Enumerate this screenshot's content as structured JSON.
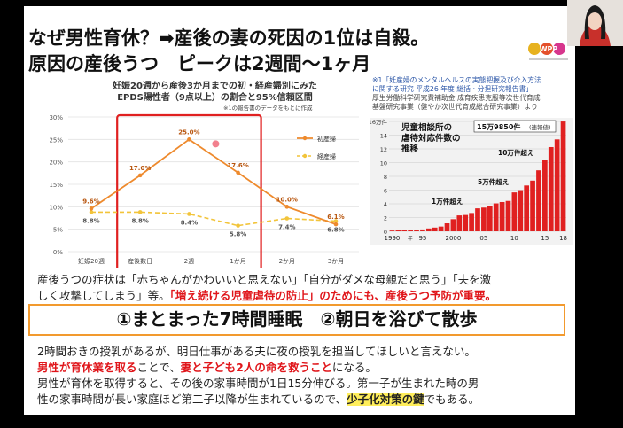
{
  "slide": {
    "title_line1": "なぜ男性育休？➡産後の妻の死因の1位は自殺。",
    "title_line2": "原因の産後うつ　ピークは2週間〜1ヶ月",
    "logo_text": "WPP",
    "chart_title_line1": "妊娠20週から産後3か月までの初・経産婦別にみた",
    "chart_title_line2": "EPDS陽性者（9点以上）の割合と95%信頼区間",
    "chart_note": "※1の報告書のデータをもとに作成",
    "ref_line1": "※1「妊産婦のメンタルヘルスの実態把握及び介入方法",
    "ref_line2": "に関する研究 平成26 年度 総括・分担研究報告書」",
    "ref_line3": "厚生労働科学研究費補助金 成育疾患克服等次世代育成",
    "ref_line4": "基盤研究事業（健やか次世代育成総合研究事業）より",
    "para1_line1": "産後うつの症状は「赤ちゃんがかわいいと思えない」「自分がダメな母親だと思う」「夫を激",
    "para1_line2a": "しく攻撃してしまう」等。",
    "para1_line2b": "「増え続ける児童虐待の防止」のためにも、産後うつ予防が重要。",
    "banner": "①まとまった7時間睡眠　②朝日を浴びて散歩",
    "para2_line1": "2時間おきの授乳があるが、明日仕事がある夫に夜の授乳を担当してほしいと言えない。",
    "para2_line2a": "男性が育休業を取る",
    "para2_line2b": "ことで、",
    "para2_line2c": "妻と子ども2人の命を救うこと",
    "para2_line2d": "になる。",
    "para3_line1": "男性が育休を取得すると、その後の家事時間が1日15分伸びる。第一子が生まれた時の男",
    "para3_line2a": "性の家事時間が長い家庭ほど第二子以降が生まれているので、",
    "para3_line2b": "少子化対策の鍵",
    "para3_line2c": "でもある。"
  },
  "chart_data": [
    {
      "type": "line",
      "categories": [
        "妊娠20週",
        "産後数日",
        "2週",
        "1か月",
        "2か月",
        "3か月"
      ],
      "series": [
        {
          "name": "初産婦",
          "values": [
            9.6,
            17.0,
            25.0,
            17.6,
            10.0,
            6.1
          ],
          "labels": [
            "9.6%",
            "17.0%",
            "25.0%",
            "17.6%",
            "10.0%",
            "6.1%"
          ]
        },
        {
          "name": "経産婦",
          "values": [
            8.8,
            8.8,
            8.4,
            5.8,
            7.4,
            6.8
          ],
          "labels": [
            "8.8%",
            "8.8%",
            "8.4%",
            "5.8%",
            "7.4%",
            "6.8%"
          ]
        }
      ],
      "yticks": [
        "0%",
        "5%",
        "10%",
        "15%",
        "20%",
        "25%",
        "30%"
      ],
      "ylim": [
        0,
        30
      ],
      "legend_position": "top-right",
      "highlight": "産後数日〜1か月",
      "colors": {
        "初産婦": "#ee8a2d",
        "経産婦": "#f2c43a"
      }
    },
    {
      "type": "bar",
      "title_line1": "児童相談所の",
      "title_line2": "虐待対応件数の",
      "title_line3": "推移",
      "badge": "15万9850件",
      "badge_note": "(速報値)",
      "year_unit": "年",
      "xticks": [
        "1990",
        "95",
        "2000",
        "05",
        "10",
        "15",
        "18"
      ],
      "yticks": [
        "16万件",
        "14",
        "12",
        "10",
        "8",
        "6",
        "4",
        "2",
        "0"
      ],
      "ylim": [
        0,
        16
      ],
      "annotations": [
        "1万件超え",
        "5万件超え",
        "10万件超え"
      ],
      "years": [
        1990,
        1991,
        1992,
        1993,
        1994,
        1995,
        1996,
        1997,
        1998,
        1999,
        2000,
        2001,
        2002,
        2003,
        2004,
        2005,
        2006,
        2007,
        2008,
        2009,
        2010,
        2011,
        2012,
        2013,
        2014,
        2015,
        2016,
        2017,
        2018
      ],
      "values": [
        0.11,
        0.13,
        0.14,
        0.16,
        0.2,
        0.27,
        0.41,
        0.54,
        0.69,
        1.16,
        1.76,
        2.31,
        2.37,
        2.66,
        3.34,
        3.45,
        3.73,
        4.06,
        4.26,
        4.42,
        5.66,
        5.99,
        6.67,
        7.38,
        8.88,
        10.33,
        12.26,
        13.38,
        15.99
      ],
      "colors": {
        "bar": "#e02020",
        "background": "#f2f2f2"
      }
    }
  ]
}
